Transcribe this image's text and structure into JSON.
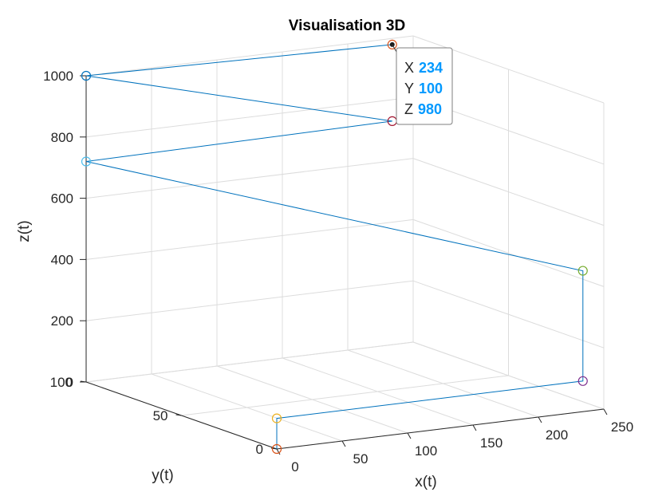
{
  "chart_data": {
    "type": "scatter",
    "title": "Visualisation 3D",
    "xlabel": "x(t)",
    "ylabel": "y(t)",
    "zlabel": "z(t)",
    "xlim": [
      0,
      250
    ],
    "ylim": [
      0,
      100
    ],
    "zlim": [
      0,
      1000
    ],
    "xticks": [
      "0",
      "50",
      "100",
      "150",
      "200",
      "250"
    ],
    "yticks": [
      "0",
      "50",
      "100"
    ],
    "zticks": [
      "0",
      "200",
      "400",
      "600",
      "800",
      "1000"
    ],
    "grid": true,
    "line_color": "#0072BD",
    "points": [
      {
        "x": 0,
        "y": 0,
        "z": 0,
        "color": "#D95319"
      },
      {
        "x": 0,
        "y": 0,
        "z": 100,
        "color": "#EDB120"
      },
      {
        "x": 234,
        "y": 0,
        "z": 100,
        "color": "#7E2F8E"
      },
      {
        "x": 234,
        "y": 0,
        "z": 460,
        "color": "#77AC30"
      },
      {
        "x": 0,
        "y": 100,
        "z": 720,
        "color": "#4DBEEE"
      },
      {
        "x": 234,
        "y": 100,
        "z": 730,
        "color": "#A2142F"
      },
      {
        "x": 0,
        "y": 100,
        "z": 1000,
        "color": "#0072BD"
      },
      {
        "x": 234,
        "y": 100,
        "z": 980,
        "color": "#D95319"
      }
    ],
    "datatip": {
      "x_label": "X",
      "x_value": "234",
      "y_label": "Y",
      "y_value": "100",
      "z_label": "Z",
      "z_value": "980",
      "value_color": "#0099FF"
    }
  }
}
